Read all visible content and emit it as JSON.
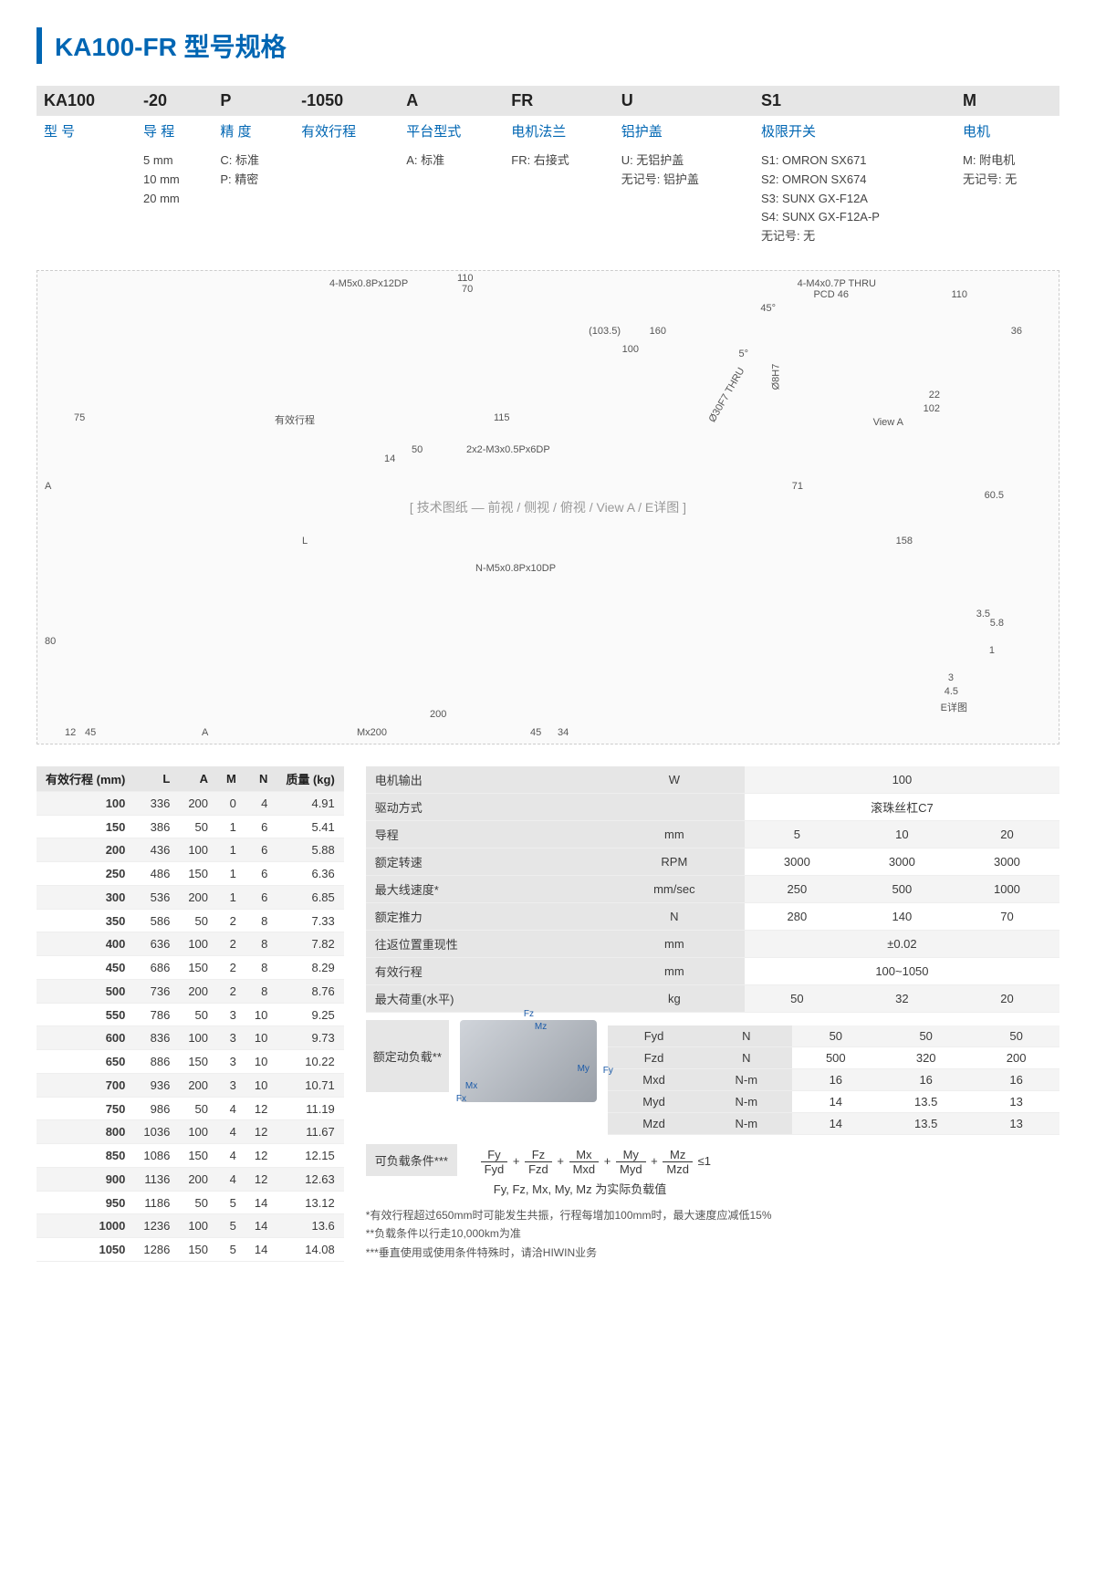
{
  "title": "KA100-FR 型号规格",
  "spec_cols": [
    {
      "code": "KA100",
      "sub": "型 号",
      "opts": []
    },
    {
      "code": "-20",
      "sub": "导 程",
      "opts": [
        "5 mm",
        "10 mm",
        "20 mm"
      ]
    },
    {
      "code": "P",
      "sub": "精 度",
      "opts": [
        "C: 标准",
        "P: 精密"
      ]
    },
    {
      "code": "-1050",
      "sub": "有效行程",
      "opts": []
    },
    {
      "code": "A",
      "sub": "平台型式",
      "opts": [
        "A: 标准"
      ]
    },
    {
      "code": "FR",
      "sub": "电机法兰",
      "opts": [
        "FR: 右接式"
      ]
    },
    {
      "code": "U",
      "sub": "铝护盖",
      "opts": [
        "U: 无铝护盖",
        "无记号: 铝护盖"
      ]
    },
    {
      "code": "S1",
      "sub": "极限开关",
      "opts": [
        "S1: OMRON SX671",
        "S2: OMRON SX674",
        "S3: SUNX GX-F12A",
        "S4: SUNX GX-F12A-P",
        "无记号: 无"
      ]
    },
    {
      "code": "M",
      "sub": "电机",
      "opts": [
        "M: 附电机",
        "无记号: 无"
      ]
    }
  ],
  "diagram_labels": {
    "a": "4-M5x0.8Px12DP",
    "b": "110",
    "c": "70",
    "d": "160",
    "e": "100",
    "f": "(103.5)",
    "g": "75",
    "h": "有效行程",
    "i": "115",
    "j": "4-M4x0.7P THRU",
    "k": "PCD 46",
    "l": "110",
    "m": "22",
    "n": "102",
    "o": "View A",
    "p": "2x2-M3x0.5Px6DP",
    "q": "50",
    "r": "14",
    "s": "L",
    "t": "A",
    "u": "71",
    "v": "158",
    "w": "60.5",
    "x": "36",
    "y": "N-M5x0.8Px10DP",
    "z": "80",
    "aa": "200",
    "ab": "Mx200",
    "ac": "45",
    "ad": "34",
    "ae": "12",
    "af": "45",
    "ag": "A",
    "ah": "E详图",
    "ai": "3",
    "aj": "4.5",
    "ak": "5.8",
    "al": "1",
    "am": "3.5",
    "an": "Ø30F7 THRU",
    "ao": "Ø8H7",
    "ap": "45°",
    "aq": "5°"
  },
  "stroke_header": [
    "有效行程 (mm)",
    "L",
    "A",
    "M",
    "N",
    "质量 (kg)"
  ],
  "stroke_rows": [
    [
      "100",
      "336",
      "200",
      "0",
      "4",
      "4.91"
    ],
    [
      "150",
      "386",
      "50",
      "1",
      "6",
      "5.41"
    ],
    [
      "200",
      "436",
      "100",
      "1",
      "6",
      "5.88"
    ],
    [
      "250",
      "486",
      "150",
      "1",
      "6",
      "6.36"
    ],
    [
      "300",
      "536",
      "200",
      "1",
      "6",
      "6.85"
    ],
    [
      "350",
      "586",
      "50",
      "2",
      "8",
      "7.33"
    ],
    [
      "400",
      "636",
      "100",
      "2",
      "8",
      "7.82"
    ],
    [
      "450",
      "686",
      "150",
      "2",
      "8",
      "8.29"
    ],
    [
      "500",
      "736",
      "200",
      "2",
      "8",
      "8.76"
    ],
    [
      "550",
      "786",
      "50",
      "3",
      "10",
      "9.25"
    ],
    [
      "600",
      "836",
      "100",
      "3",
      "10",
      "9.73"
    ],
    [
      "650",
      "886",
      "150",
      "3",
      "10",
      "10.22"
    ],
    [
      "700",
      "936",
      "200",
      "3",
      "10",
      "10.71"
    ],
    [
      "750",
      "986",
      "50",
      "4",
      "12",
      "11.19"
    ],
    [
      "800",
      "1036",
      "100",
      "4",
      "12",
      "11.67"
    ],
    [
      "850",
      "1086",
      "150",
      "4",
      "12",
      "12.15"
    ],
    [
      "900",
      "1136",
      "200",
      "4",
      "12",
      "12.63"
    ],
    [
      "950",
      "1186",
      "50",
      "5",
      "14",
      "13.12"
    ],
    [
      "1000",
      "1236",
      "100",
      "5",
      "14",
      "13.6"
    ],
    [
      "1050",
      "1286",
      "150",
      "5",
      "14",
      "14.08"
    ]
  ],
  "perf_rows": [
    {
      "label": "电机输出",
      "unit": "W",
      "vals": [
        "100"
      ],
      "span": 3
    },
    {
      "label": "驱动方式",
      "unit": "",
      "vals": [
        "滚珠丝杠C7"
      ],
      "span": 3
    },
    {
      "label": "导程",
      "unit": "mm",
      "vals": [
        "5",
        "10",
        "20"
      ]
    },
    {
      "label": "额定转速",
      "unit": "RPM",
      "vals": [
        "3000",
        "3000",
        "3000"
      ]
    },
    {
      "label": "最大线速度*",
      "unit": "mm/sec",
      "vals": [
        "250",
        "500",
        "1000"
      ]
    },
    {
      "label": "额定推力",
      "unit": "N",
      "vals": [
        "280",
        "140",
        "70"
      ]
    },
    {
      "label": "往返位置重现性",
      "unit": "mm",
      "vals": [
        "±0.02"
      ],
      "span": 3
    },
    {
      "label": "有效行程",
      "unit": "mm",
      "vals": [
        "100~1050"
      ],
      "span": 3
    },
    {
      "label": "最大荷重(水平)",
      "unit": "kg",
      "vals": [
        "50",
        "32",
        "20"
      ]
    }
  ],
  "dyn_label": "额定动负载**",
  "dyn_rows": [
    {
      "k": "Fyd",
      "u": "N",
      "v": [
        "50",
        "50",
        "50"
      ]
    },
    {
      "k": "Fzd",
      "u": "N",
      "v": [
        "500",
        "320",
        "200"
      ]
    },
    {
      "k": "Mxd",
      "u": "N-m",
      "v": [
        "16",
        "16",
        "16"
      ]
    },
    {
      "k": "Myd",
      "u": "N-m",
      "v": [
        "14",
        "13.5",
        "13"
      ]
    },
    {
      "k": "Mzd",
      "u": "N-m",
      "v": [
        "14",
        "13.5",
        "13"
      ]
    }
  ],
  "load_axes": {
    "fx": "Fx",
    "fy": "Fy",
    "fz": "Fz",
    "mx": "Mx",
    "my": "My",
    "mz": "Mz"
  },
  "formula_label": "可负载条件***",
  "formula_terms": [
    [
      "Fy",
      "Fyd"
    ],
    [
      "Fz",
      "Fzd"
    ],
    [
      "Mx",
      "Mxd"
    ],
    [
      "My",
      "Myd"
    ],
    [
      "Mz",
      "Mzd"
    ]
  ],
  "formula_tail": "≤1",
  "formula_note": "Fy, Fz, Mx, My, Mz 为实际负载值",
  "notes": [
    "*有效行程超过650mm时可能发生共振，行程每增加100mm时，最大速度应减低15%",
    "**负载条件以行走10,000km为准",
    "***垂直使用或使用条件特殊时，请洽HIWIN业务"
  ]
}
